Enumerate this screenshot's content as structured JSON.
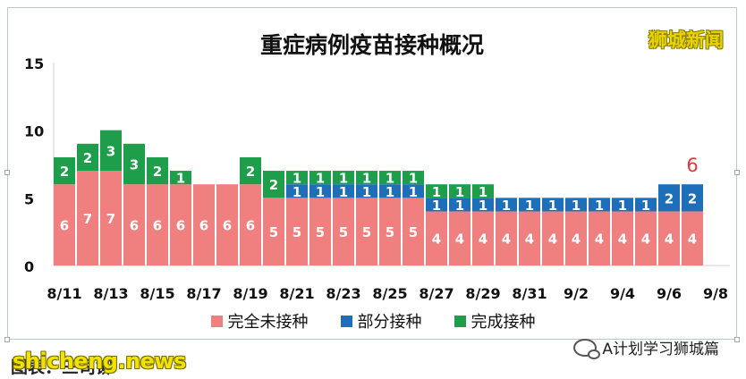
{
  "watermark_text": "shicheng.news",
  "source_label": "图表：三司铆",
  "brand_text": "狮城新闻",
  "wechat_account": "A计划学习狮城篇",
  "colors": {
    "unvaccinated": "#f07f7f",
    "partial": "#1f6fb8",
    "complete": "#1e9e4a"
  },
  "chart_data": {
    "type": "bar",
    "stacked": true,
    "title": "重症病例疫苗接种概况",
    "xlabel": "",
    "ylabel": "",
    "ylim": [
      0,
      15
    ],
    "yticks": [
      0,
      5,
      10,
      15
    ],
    "grid": false,
    "legend_position": "bottom",
    "categories": [
      "8/11",
      "8/12",
      "8/13",
      "8/14",
      "8/15",
      "8/16",
      "8/17",
      "8/18",
      "8/19",
      "8/20",
      "8/21",
      "8/22",
      "8/23",
      "8/24",
      "8/25",
      "8/26",
      "8/27",
      "8/28",
      "8/29",
      "8/30",
      "8/31",
      "9/1",
      "9/2",
      "9/3",
      "9/4",
      "9/5",
      "9/6",
      "9/7"
    ],
    "xtick_labels": [
      "8/11",
      "8/13",
      "8/15",
      "8/17",
      "8/19",
      "8/21",
      "8/23",
      "8/25",
      "8/27",
      "8/29",
      "8/31",
      "9/2",
      "9/4",
      "9/6",
      "9/8"
    ],
    "series": [
      {
        "name": "完全未接种",
        "color_key": "unvaccinated",
        "values": [
          6,
          7,
          7,
          6,
          6,
          6,
          6,
          6,
          6,
          5,
          5,
          5,
          5,
          5,
          5,
          5,
          4,
          4,
          4,
          4,
          4,
          4,
          4,
          4,
          4,
          4,
          4,
          4
        ]
      },
      {
        "name": "部分接种",
        "color_key": "partial",
        "values": [
          0,
          0,
          0,
          0,
          0,
          0,
          0,
          0,
          0,
          0,
          1,
          1,
          1,
          1,
          1,
          1,
          1,
          1,
          1,
          1,
          1,
          1,
          1,
          1,
          1,
          1,
          2,
          2
        ]
      },
      {
        "name": "完成接种",
        "color_key": "complete",
        "values": [
          2,
          2,
          3,
          3,
          2,
          1,
          0,
          0,
          2,
          2,
          1,
          1,
          1,
          1,
          1,
          1,
          1,
          1,
          1,
          0,
          0,
          0,
          0,
          0,
          0,
          0,
          0,
          0
        ]
      }
    ],
    "annotations": [
      {
        "category": "9/6",
        "text": "6"
      }
    ]
  }
}
